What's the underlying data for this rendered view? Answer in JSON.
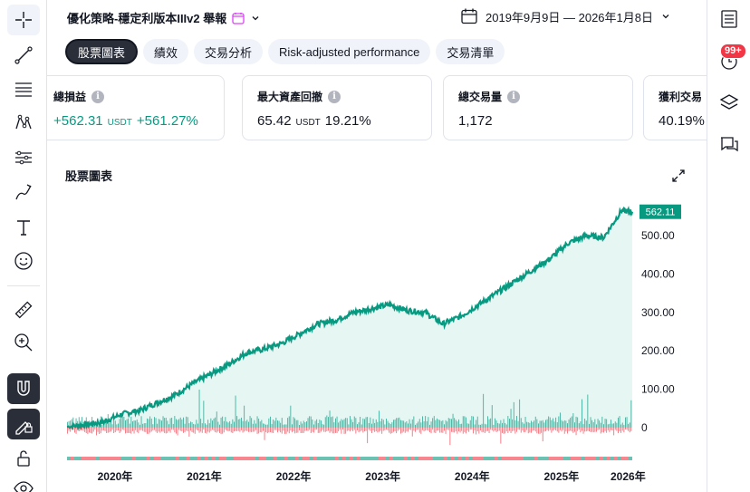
{
  "strategy": {
    "title": "優化策略-穩定利版本IIIv2 舉報"
  },
  "date_range": "2019年9月9日 — 2026年1月8日",
  "tabs": [
    {
      "label": "股票圖表",
      "active": true
    },
    {
      "label": "績效",
      "active": false
    },
    {
      "label": "交易分析",
      "active": false
    },
    {
      "label": "Risk-adjusted performance",
      "active": false
    },
    {
      "label": "交易清單",
      "active": false
    }
  ],
  "metrics": [
    {
      "label": "總損益",
      "value": "+562.31",
      "unit": "USDT",
      "secondary": "+561.27%",
      "positive": true
    },
    {
      "label": "最大資產回撤",
      "value": "65.42",
      "unit": "USDT",
      "secondary": "19.21%",
      "positive": false
    },
    {
      "label": "總交易量",
      "value": "1,172",
      "unit": "",
      "secondary": "",
      "positive": false
    },
    {
      "label": "獲利交易",
      "value": "40.19%",
      "unit": "",
      "secondary": "",
      "positive": false
    }
  ],
  "chart_title": "股票圖表",
  "notifications": "99+",
  "colors": {
    "equity_line": "#089981",
    "equity_fill": "#e6f6f3",
    "positive": "#089981",
    "negative": "#f23645",
    "accent_tag": "#089981"
  },
  "icons": {
    "left_toolbar": [
      "crosshair-icon",
      "trend-line-icon",
      "fib-retracement-icon",
      "pattern-icon",
      "projection-icon",
      "brush-icon",
      "text-icon",
      "emoji-icon",
      "ruler-icon",
      "zoom-in-icon",
      "magnet-icon",
      "lock-drawing-icon",
      "unlock-icon",
      "eye-icon"
    ],
    "right_toolbar": [
      "watchlist-icon",
      "alerts-icon",
      "layers-icon",
      "chat-icon"
    ]
  },
  "chart_data": {
    "type": "area",
    "title": "",
    "xlabel": "",
    "ylabel": "",
    "x_ticks": [
      "2020年",
      "2021年",
      "2022年",
      "2023年",
      "2024年",
      "2025年",
      "2026年"
    ],
    "y_ticks": [
      0,
      100.0,
      200.0,
      300.0,
      400.0,
      500.0
    ],
    "y_tick_labels": [
      "0",
      "100.00",
      "200.00",
      "300.00",
      "400.00",
      "500.00"
    ],
    "ylim": [
      0,
      600
    ],
    "last_value_label": "562.11",
    "series": [
      {
        "x": [
          2019.69,
          2019.9,
          2020.1,
          2020.3,
          2020.5,
          2020.7,
          2020.9,
          2021.1,
          2021.3,
          2021.5,
          2021.7,
          2021.9,
          2022.1,
          2022.3,
          2022.5,
          2022.7,
          2022.9,
          2023.1,
          2023.3,
          2023.5,
          2023.7,
          2023.9,
          2024.1,
          2024.3,
          2024.5,
          2024.7,
          2024.9,
          2025.1,
          2025.3,
          2025.5,
          2025.7,
          2025.9,
          2026.02
        ],
        "y": [
          2,
          8,
          15,
          35,
          45,
          65,
          85,
          115,
          140,
          165,
          195,
          205,
          220,
          245,
          270,
          280,
          300,
          310,
          320,
          305,
          300,
          270,
          290,
          320,
          350,
          380,
          410,
          440,
          480,
          500,
          495,
          565,
          562
        ]
      }
    ]
  }
}
